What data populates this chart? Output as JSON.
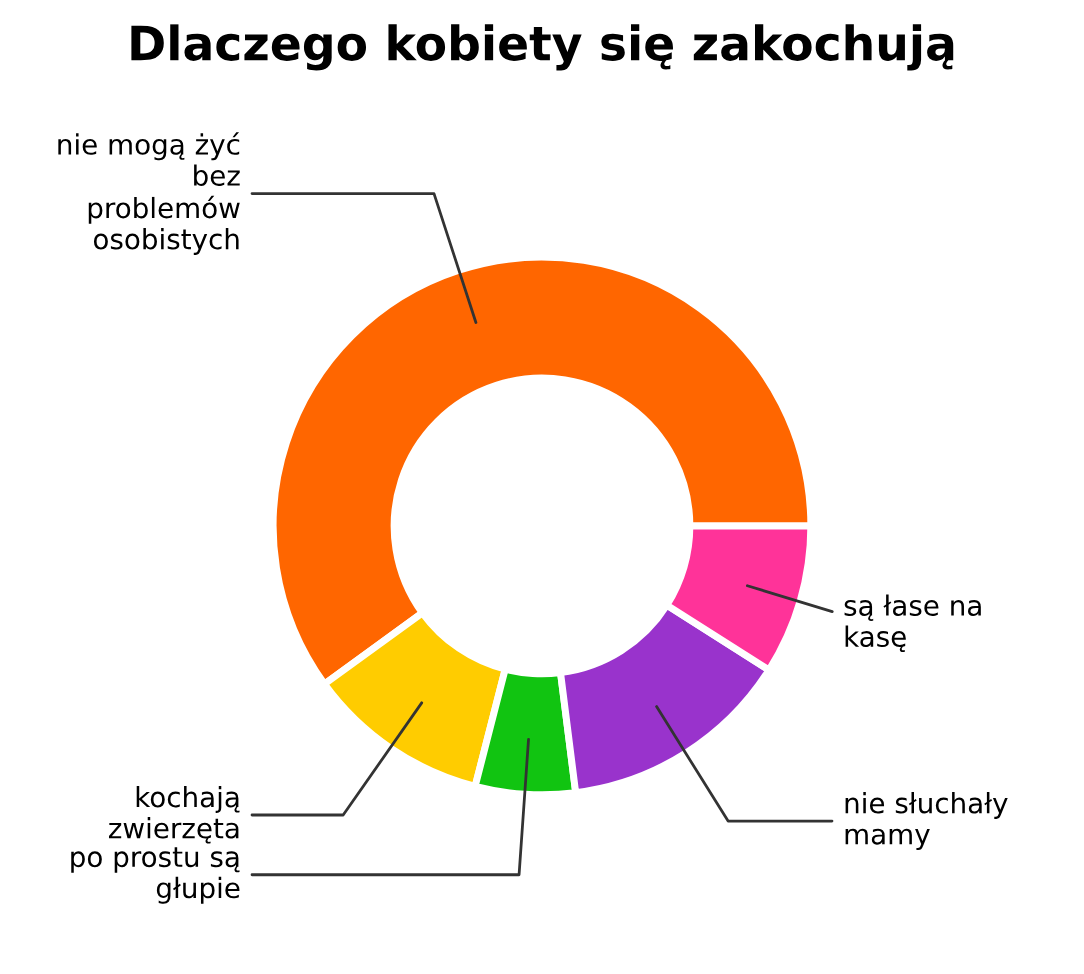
{
  "chart_data": {
    "type": "donut",
    "title": "Dlaczego kobiety się zakochują",
    "categories": [
      "nie mogą żyć\nbez\nproblemów\nosobistych",
      "kochają\nzwierzęta",
      "po prostu są\ngłupie",
      "nie słuchały\nmamy",
      "są łase na\nkasę"
    ],
    "values": [
      60,
      11,
      6,
      14,
      9
    ],
    "colors": [
      "#ff6600",
      "#ffcc00",
      "#11c411",
      "#9933cc",
      "#ff3399"
    ],
    "legend": false
  }
}
